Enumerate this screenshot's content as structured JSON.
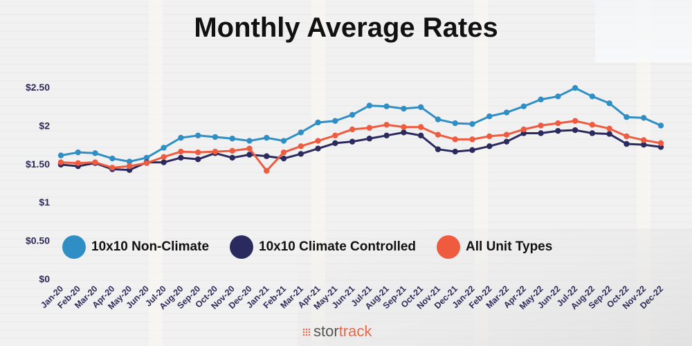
{
  "title": "Monthly Average Rates",
  "logo": {
    "text_part1": "stor",
    "text_part2": "track"
  },
  "legend": [
    {
      "label": "10x10 Non-Climate",
      "color": "#2f8fc4"
    },
    {
      "label": "10x10 Climate Controlled",
      "color": "#2b2a5e"
    },
    {
      "label": "All Unit Types",
      "color": "#ef5b3f"
    }
  ],
  "chart_data": {
    "type": "line",
    "title": "Monthly Average Rates",
    "xlabel": "",
    "ylabel": "",
    "ylim": [
      0,
      2.5
    ],
    "yticks": [
      "$0",
      "$0.50",
      "$1",
      "$1.50",
      "$2",
      "$2.50"
    ],
    "categories": [
      "Jan-20",
      "Feb-20",
      "Mar-20",
      "Apr-20",
      "May-20",
      "Jun-20",
      "Jul-20",
      "Aug-20",
      "Sep-20",
      "Oct-20",
      "Nov-20",
      "Dec-20",
      "Jan-21",
      "Feb-21",
      "Mar-21",
      "Apr-21",
      "May-21",
      "Jun-21",
      "Jul-21",
      "Aug-21",
      "Sep-21",
      "Oct-21",
      "Nov-21",
      "Dec-21",
      "Jan-22",
      "Feb-22",
      "Mar-22",
      "Apr-22",
      "May-22",
      "Jun-22",
      "Jul-22",
      "Aug-22",
      "Sep-22",
      "Oct-22",
      "Nov-22",
      "Dec-22"
    ],
    "series": [
      {
        "name": "10x10 Non-Climate",
        "color": "#2f8fc4",
        "values": [
          1.61,
          1.65,
          1.64,
          1.57,
          1.53,
          1.58,
          1.71,
          1.84,
          1.87,
          1.85,
          1.83,
          1.8,
          1.84,
          1.8,
          1.91,
          2.04,
          2.06,
          2.14,
          2.26,
          2.25,
          2.22,
          2.24,
          2.08,
          2.03,
          2.02,
          2.12,
          2.17,
          2.25,
          2.34,
          2.38,
          2.49,
          2.38,
          2.29,
          2.11,
          2.1,
          2.0
        ]
      },
      {
        "name": "10x10 Climate Controlled",
        "color": "#2b2a5e",
        "values": [
          1.49,
          1.47,
          1.51,
          1.43,
          1.42,
          1.52,
          1.52,
          1.58,
          1.56,
          1.64,
          1.58,
          1.62,
          1.6,
          1.57,
          1.63,
          1.7,
          1.77,
          1.79,
          1.83,
          1.87,
          1.91,
          1.87,
          1.69,
          1.66,
          1.68,
          1.73,
          1.79,
          1.9,
          1.9,
          1.93,
          1.94,
          1.9,
          1.89,
          1.76,
          1.75,
          1.72
        ]
      },
      {
        "name": "All Unit Types",
        "color": "#ef5b3f",
        "values": [
          1.52,
          1.51,
          1.52,
          1.45,
          1.47,
          1.51,
          1.59,
          1.66,
          1.65,
          1.66,
          1.67,
          1.7,
          1.41,
          1.65,
          1.73,
          1.8,
          1.87,
          1.95,
          1.97,
          2.01,
          1.98,
          1.98,
          1.88,
          1.82,
          1.82,
          1.86,
          1.88,
          1.95,
          2.0,
          2.03,
          2.06,
          2.01,
          1.96,
          1.86,
          1.81,
          1.77
        ]
      }
    ],
    "grid": false,
    "legend_position": "bottom-left"
  }
}
